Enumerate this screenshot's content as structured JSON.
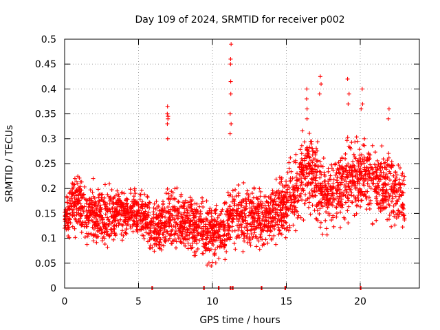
{
  "chart_data": {
    "type": "scatter",
    "title": "Day 109 of 2024, SRMTID for receiver p002",
    "xlabel": "GPS time / hours",
    "ylabel": "SRMTID / TECUs",
    "xlim": [
      0,
      24
    ],
    "ylim": [
      0,
      0.5
    ],
    "xticks": [
      0,
      5,
      10,
      15,
      20
    ],
    "xtick_labels": [
      "0",
      "5",
      "10",
      "15",
      "20"
    ],
    "yticks": [
      0,
      0.05,
      0.1,
      0.15,
      0.2,
      0.25,
      0.3,
      0.35,
      0.4,
      0.45,
      0.5
    ],
    "ytick_labels": [
      "0",
      "0.05",
      "0.1",
      "0.15",
      "0.2",
      "0.25",
      "0.3",
      "0.35",
      "0.4",
      "0.45",
      "0.5"
    ],
    "grid": true,
    "marker": "+",
    "color": "#ff0000",
    "series": [
      {
        "name": "SRMTID",
        "trend_description": "dense scatter of roughly 2800 points",
        "trend_x": [
          0,
          0.5,
          1,
          1.5,
          2,
          2.5,
          3,
          3.5,
          4,
          4.5,
          5,
          5.5,
          6,
          6.5,
          7,
          7.5,
          8,
          8.5,
          9,
          9.5,
          10,
          10.5,
          11,
          11.5,
          12,
          12.5,
          13,
          13.5,
          14,
          14.5,
          15,
          15.5,
          16,
          16.5,
          17,
          17.5,
          18,
          18.5,
          19,
          19.5,
          20,
          20.5,
          21,
          21.5,
          22,
          22.5,
          23
        ],
        "trend_y": [
          0.13,
          0.17,
          0.17,
          0.15,
          0.15,
          0.14,
          0.15,
          0.15,
          0.15,
          0.15,
          0.15,
          0.14,
          0.12,
          0.13,
          0.14,
          0.14,
          0.13,
          0.13,
          0.12,
          0.12,
          0.11,
          0.11,
          0.13,
          0.15,
          0.14,
          0.14,
          0.14,
          0.14,
          0.15,
          0.17,
          0.17,
          0.19,
          0.22,
          0.24,
          0.22,
          0.19,
          0.19,
          0.2,
          0.21,
          0.22,
          0.22,
          0.22,
          0.21,
          0.2,
          0.2,
          0.19,
          0.18
        ],
        "spread_y": [
          0.03,
          0.05,
          0.06,
          0.05,
          0.05,
          0.05,
          0.05,
          0.04,
          0.04,
          0.04,
          0.04,
          0.05,
          0.05,
          0.06,
          0.06,
          0.05,
          0.05,
          0.05,
          0.05,
          0.05,
          0.05,
          0.05,
          0.05,
          0.05,
          0.05,
          0.05,
          0.05,
          0.05,
          0.05,
          0.06,
          0.06,
          0.06,
          0.07,
          0.07,
          0.07,
          0.06,
          0.06,
          0.06,
          0.07,
          0.07,
          0.06,
          0.06,
          0.06,
          0.06,
          0.06,
          0.06,
          0.05
        ],
        "spikes": [
          {
            "x": 7.0,
            "y": [
              0.34,
              0.345,
              0.35,
              0.365,
              0.33,
              0.3
            ]
          },
          {
            "x": 11.25,
            "y": [
              0.49,
              0.46,
              0.45,
              0.415,
              0.39,
              0.35,
              0.33,
              0.31
            ]
          },
          {
            "x": 16.4,
            "y": [
              0.4,
              0.38,
              0.36,
              0.34
            ]
          },
          {
            "x": 17.3,
            "y": [
              0.425,
              0.41,
              0.39
            ]
          },
          {
            "x": 19.2,
            "y": [
              0.42,
              0.39,
              0.37
            ]
          },
          {
            "x": 20.1,
            "y": [
              0.4,
              0.37,
              0.36
            ]
          },
          {
            "x": 21.9,
            "y": [
              0.36,
              0.34
            ]
          }
        ],
        "zero_values_x": [
          5.9,
          9.4,
          10.4,
          11.2,
          11.35,
          13.3,
          14.9,
          20.0
        ]
      }
    ]
  }
}
